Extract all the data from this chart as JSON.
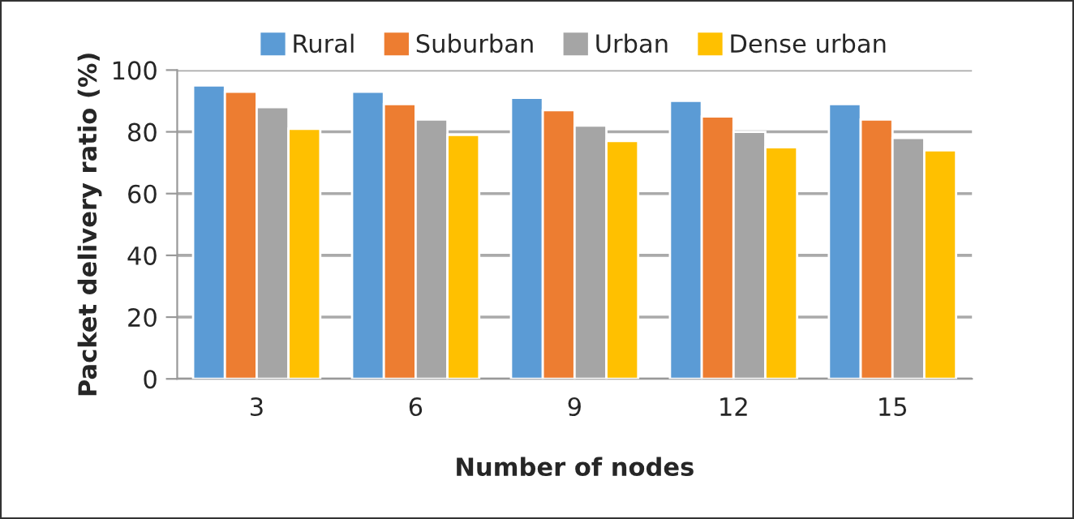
{
  "chart_data": {
    "type": "bar",
    "xlabel": "Number of nodes",
    "ylabel": "Packet delivery ratio (%)",
    "categories": [
      "3",
      "6",
      "9",
      "12",
      "15"
    ],
    "series": [
      {
        "name": "Rural",
        "color": "#5b9bd5",
        "values": [
          95,
          93,
          91,
          90,
          89
        ]
      },
      {
        "name": "Suburban",
        "color": "#ed7d31",
        "values": [
          93,
          89,
          87,
          85,
          84
        ]
      },
      {
        "name": "Urban",
        "color": "#a5a5a5",
        "values": [
          88,
          84,
          82,
          80,
          78
        ]
      },
      {
        "name": "Dense urban",
        "color": "#ffc000",
        "values": [
          81,
          79,
          77,
          75,
          74
        ]
      }
    ],
    "ylim": [
      0,
      100
    ],
    "yticks": [
      0,
      20,
      40,
      60,
      80,
      100
    ],
    "grid": "y",
    "legend": "top"
  }
}
